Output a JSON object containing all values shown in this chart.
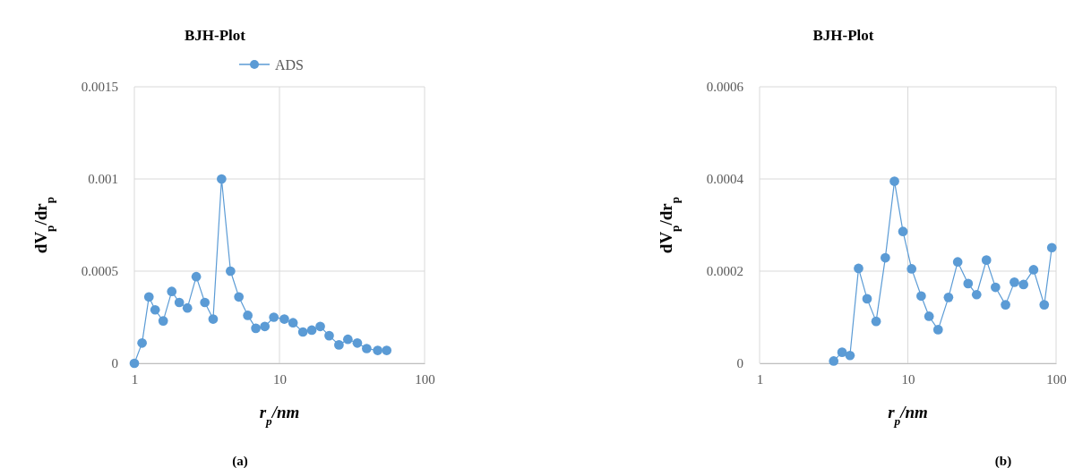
{
  "chart_data": [
    {
      "type": "line",
      "title": "BJH-Plot",
      "xlabel": "r$_{p}$/nm",
      "ylabel": "dV$_{p}$/dr$_{p}$",
      "annotations": [
        "(a)"
      ],
      "log": "x",
      "grid": true,
      "legend": "top",
      "marker": "circle",
      "line_style": "solid",
      "xlim": [
        1,
        100
      ],
      "xticks": [
        1,
        10,
        100
      ],
      "ylim": [
        0,
        0.0015
      ],
      "yticks": [
        0,
        0.0005,
        0.001,
        0.0015
      ],
      "x": [
        1,
        1.13,
        1.26,
        1.39,
        1.58,
        1.81,
        2.04,
        2.32,
        2.67,
        3.06,
        3.49,
        3.99,
        4.6,
        5.25,
        6.05,
        6.87,
        7.93,
        9.14,
        10.8,
        12.4,
        14.5,
        16.7,
        19.1,
        22,
        25.7,
        29.6,
        34.4,
        39.9,
        47.5,
        54.8
      ],
      "series": [
        {
          "name": "ADS",
          "color": "#5b9bd5",
          "values": [
            0,
            0.00011,
            0.00036,
            0.00029,
            0.00023,
            0.00039,
            0.00033,
            0.0003,
            0.00047,
            0.00033,
            0.00024,
            0.001,
            0.0005,
            0.00036,
            0.00026,
            0.00019,
            0.0002,
            0.00025,
            0.00024,
            0.00022,
            0.00017,
            0.00018,
            0.0002,
            0.00015,
            0.0001,
            0.00013,
            0.00011,
            8e-05,
            7e-05,
            7e-05
          ]
        }
      ]
    },
    {
      "type": "line",
      "title": "BJH-Plot",
      "xlabel": "r$_{p}$/nm",
      "ylabel": "dV$_{p}$/dr$_{p}$",
      "annotations": [
        "(b)"
      ],
      "log": "x",
      "grid": true,
      "marker": "circle",
      "line_style": "solid",
      "xlim": [
        1,
        100
      ],
      "xticks": [
        1,
        10,
        100
      ],
      "ylim": [
        0,
        0.0006
      ],
      "yticks": [
        0,
        0.0002,
        0.0004,
        0.0006
      ],
      "x": [
        3.16,
        3.6,
        4.07,
        4.65,
        5.31,
        6.11,
        7.05,
        8.12,
        9.27,
        10.6,
        12.3,
        13.9,
        16,
        18.8,
        21.7,
        25.5,
        29.1,
        33.9,
        39,
        45.6,
        52.3,
        60.3,
        70.5,
        83.2,
        93.6
      ],
      "series": [
        {
          "color": "#5b9bd5",
          "values": [
            5e-06,
            2.4e-05,
            1.7e-05,
            0.000206,
            0.00014,
            9.1e-05,
            0.000229,
            0.000395,
            0.000286,
            0.000205,
            0.000146,
            0.000102,
            7.3e-05,
            0.000143,
            0.00022,
            0.000173,
            0.000149,
            0.000224,
            0.000165,
            0.000127,
            0.000176,
            0.000171,
            0.000203,
            0.000127,
            0.000251
          ]
        }
      ]
    }
  ]
}
